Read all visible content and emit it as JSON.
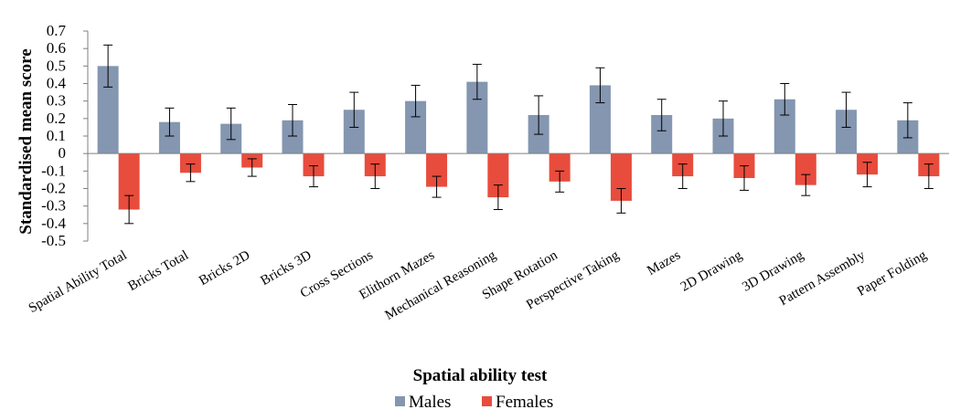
{
  "chart_data": {
    "type": "bar",
    "title": "",
    "xlabel": "Spatial ability test",
    "ylabel": "Standardised mean score",
    "ylim": [
      -0.5,
      0.7
    ],
    "yticks": [
      0.7,
      0.6,
      0.5,
      0.4,
      0.3,
      0.2,
      0.1,
      0,
      -0.1,
      -0.2,
      -0.3,
      -0.4,
      -0.5
    ],
    "ytick_labels": [
      "0.7",
      "0.6",
      "0.5",
      "0.4",
      "0.3",
      "0.2",
      "0.1",
      "0",
      "-0.1",
      "-0.2",
      "-0.3",
      "-0.4",
      "-0.5"
    ],
    "grid": false,
    "legend_position": "bottom",
    "categories": [
      "Spatial Ability Total",
      "Bricks Total",
      "Bricks 2D",
      "Bricks 3D",
      "Cross Sections",
      "Elithorn Mazes",
      "Mechanical Reasoning",
      "Shape Rotation",
      "Perspective Taking",
      "Mazes",
      "2D Drawing",
      "3D Drawing",
      "Pattern Assembly",
      "Paper Folding"
    ],
    "series": [
      {
        "name": "Males",
        "color": "#8496B0",
        "values": [
          0.5,
          0.18,
          0.17,
          0.19,
          0.25,
          0.3,
          0.41,
          0.22,
          0.39,
          0.22,
          0.2,
          0.31,
          0.25,
          0.19
        ],
        "error": [
          0.12,
          0.08,
          0.09,
          0.09,
          0.1,
          0.09,
          0.1,
          0.11,
          0.1,
          0.09,
          0.1,
          0.09,
          0.1,
          0.1
        ]
      },
      {
        "name": "Females",
        "color": "#E84C3D",
        "values": [
          -0.32,
          -0.11,
          -0.08,
          -0.13,
          -0.13,
          -0.19,
          -0.25,
          -0.16,
          -0.27,
          -0.13,
          -0.14,
          -0.18,
          -0.12,
          -0.13
        ],
        "error": [
          0.08,
          0.05,
          0.05,
          0.06,
          0.07,
          0.06,
          0.07,
          0.06,
          0.07,
          0.07,
          0.07,
          0.06,
          0.07,
          0.07
        ]
      }
    ]
  }
}
